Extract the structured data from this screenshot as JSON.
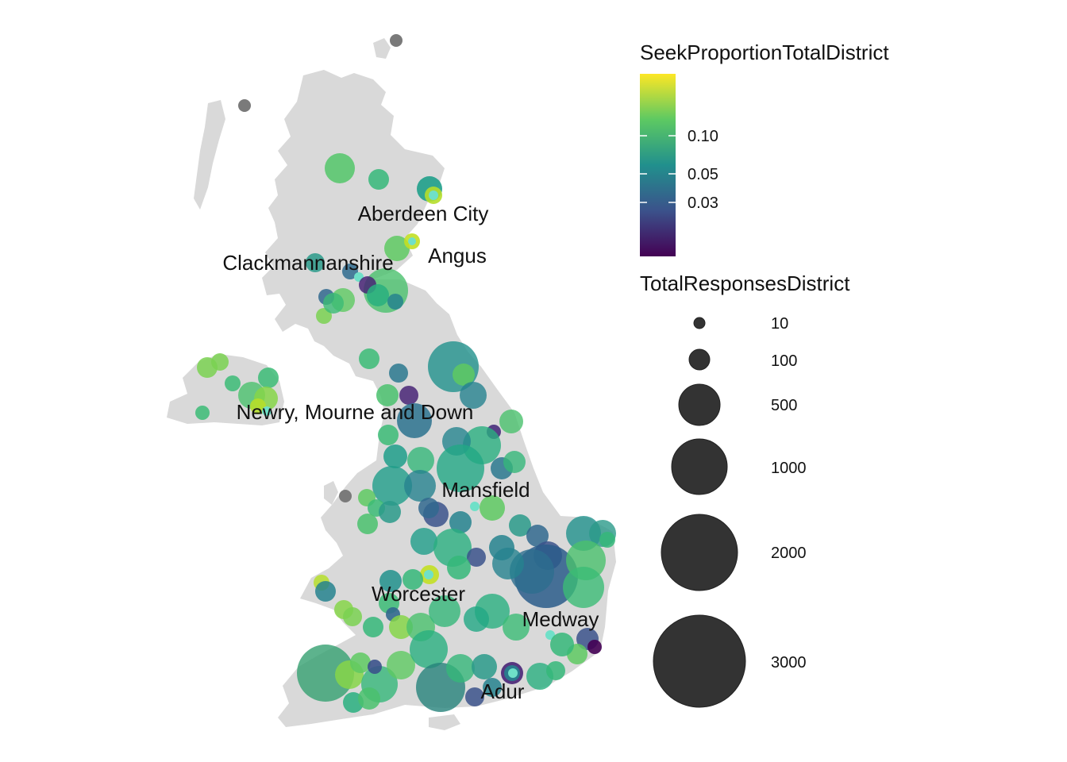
{
  "map": {
    "labels": {
      "aberdeen": "Aberdeen City",
      "angus": "Angus",
      "clackmannanshire": "Clackmannanshire",
      "newry": "Newry, Mourne and Down",
      "mansfield": "Mansfield",
      "worcester": "Worcester",
      "medway": "Medway",
      "adur": "Adur"
    },
    "land_color": "#d9d9d9",
    "na_point_color": "#7a7a7a"
  },
  "legend": {
    "color_title": "SeekProportionTotalDistrict",
    "color_ticks": [
      "0.10",
      "0.05",
      "0.03"
    ],
    "color_scale": [
      "#440154",
      "#3b528b",
      "#21908d",
      "#5dc962",
      "#fde725"
    ],
    "size_title": "TotalResponsesDistrict",
    "size_items": [
      "10",
      "100",
      "500",
      "1000",
      "2000",
      "3000"
    ],
    "size_key_color": "#333333"
  }
}
